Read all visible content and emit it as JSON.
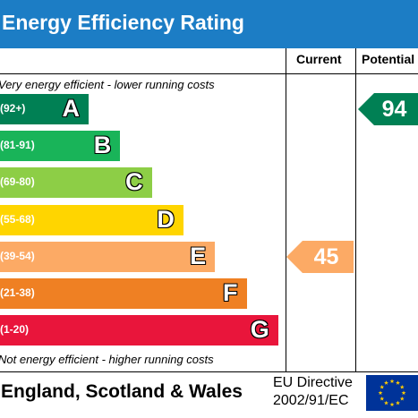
{
  "header": {
    "title": "Energy Efficiency Rating"
  },
  "columns": {
    "current": "Current",
    "potential": "Potential"
  },
  "notes": {
    "top": "Very energy efficient - lower running costs",
    "bottom": "Not energy efficient - higher running costs"
  },
  "chart_data": {
    "type": "bar",
    "title": "Energy Efficiency Rating",
    "bands": [
      {
        "letter": "A",
        "range": "(92+)",
        "color": "#008054"
      },
      {
        "letter": "B",
        "range": "(81-91)",
        "color": "#19b459"
      },
      {
        "letter": "C",
        "range": "(69-80)",
        "color": "#8dce46"
      },
      {
        "letter": "D",
        "range": "(55-68)",
        "color": "#ffd500"
      },
      {
        "letter": "E",
        "range": "(39-54)",
        "color": "#fcaa65"
      },
      {
        "letter": "F",
        "range": "(21-38)",
        "color": "#ef8023"
      },
      {
        "letter": "G",
        "range": "(1-20)",
        "color": "#e9153b"
      }
    ],
    "current": {
      "value": 45,
      "band": "E",
      "color": "#fcaa65"
    },
    "potential": {
      "value": 94,
      "band": "A",
      "color": "#008054"
    }
  },
  "footer": {
    "region": "England, Scotland & Wales",
    "directive_line1": "EU Directive",
    "directive_line2": "2002/91/EC"
  },
  "icons": {
    "flag": "eu-flag-icon"
  }
}
